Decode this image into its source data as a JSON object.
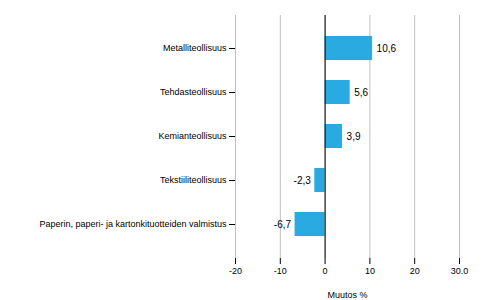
{
  "chart_data": {
    "type": "bar",
    "orientation": "horizontal",
    "xlabel": "Muutos %",
    "categories": [
      "Paperin, paperi- ja kartonkituotteiden valmistus",
      "Tekstiiliteollisuus",
      "Kemianteollisuus",
      "Tehdasteollisuus",
      "Metalliteollisuus"
    ],
    "values": [
      -6.7,
      -2.3,
      3.9,
      5.6,
      10.6
    ],
    "value_labels": [
      "-6,7",
      "-2,3",
      "3,9",
      "5,6",
      "10,6"
    ],
    "data_labels": true,
    "color": "#29abe2",
    "xlim": [
      -20,
      30
    ],
    "xticks": [
      -20,
      -10,
      0,
      10,
      20,
      {
        "value": 30,
        "label": "30.0"
      }
    ],
    "grid": true
  }
}
